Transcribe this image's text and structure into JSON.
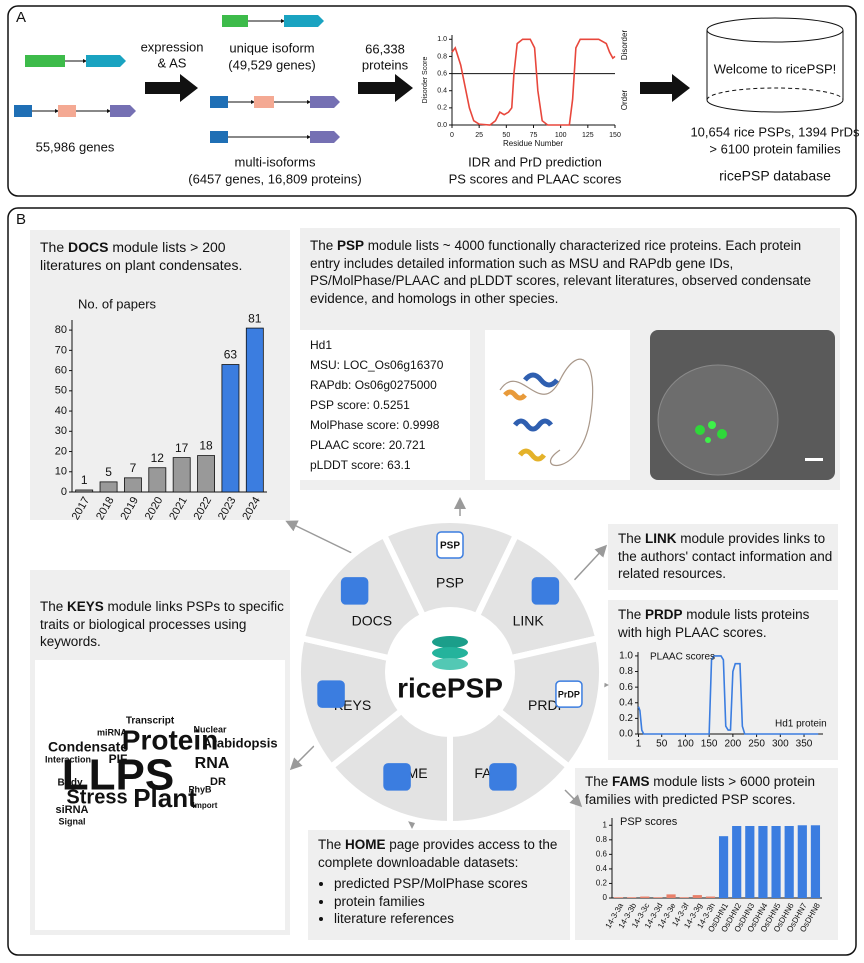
{
  "panel_a": {
    "label": "A",
    "genes": "55,986 genes",
    "step1": [
      "expression",
      "& AS"
    ],
    "unique": {
      "title": "unique isoform",
      "count": "(49,529 genes)"
    },
    "multi": {
      "title": "multi-isoforms",
      "count": "(6457 genes, 16,809 proteins)"
    },
    "step2": [
      "66,338",
      "proteins"
    ],
    "disorder_chart": {
      "type": "line",
      "y_label": "Disorder Score",
      "x_label": "Residue Number",
      "upper_label": "Disorder",
      "lower_label": "Order",
      "threshold": 0.6,
      "color": "#e8473c",
      "xlim": [
        0,
        150
      ],
      "ylim": [
        0,
        1.05
      ],
      "xticks": [
        0,
        25,
        50,
        75,
        100,
        125,
        150
      ],
      "yticks": [
        {
          "value": 0,
          "label": "0.0"
        },
        {
          "value": 0.2,
          "label": "0.2"
        },
        {
          "value": 0.4,
          "label": "0.4"
        },
        {
          "value": 0.6,
          "label": "0.6"
        },
        {
          "value": 0.8,
          "label": "0.8"
        },
        {
          "value": 1,
          "label": "1.0"
        }
      ],
      "x": [
        0,
        3,
        8,
        12,
        16,
        20,
        25,
        35,
        40,
        44,
        48,
        52,
        55,
        57,
        60,
        65,
        72,
        76,
        79,
        83,
        88,
        100,
        108,
        111,
        114,
        118,
        125,
        135,
        142,
        145,
        148,
        150
      ],
      "values": [
        0.85,
        0.9,
        0.7,
        0.45,
        0.2,
        0.05,
        0.01,
        0.0,
        0.05,
        0.15,
        0.12,
        0.15,
        0.2,
        0.6,
        0.95,
        1.0,
        1.0,
        0.9,
        0.4,
        0.05,
        0.0,
        0.0,
        0.0,
        0.3,
        0.9,
        1.0,
        1.0,
        1.0,
        0.95,
        0.85,
        0.78,
        0.8
      ]
    },
    "caption": [
      "IDR and PrD prediction",
      "PS scores and PLAAC scores"
    ],
    "database": {
      "screen": "Welcome to ricePSP!",
      "stats": [
        "10,654 rice PSPs, 1394 PrDs",
        "> 6100 protein families"
      ],
      "name": "ricePSP database"
    }
  },
  "panel_b": {
    "label": "B",
    "hub": {
      "center": "ricePSP",
      "modules": [
        "PSP",
        "LINK",
        "PRDP",
        "FAMS",
        "HOME",
        "KEYS",
        "DOCS"
      ],
      "icon_labels": [
        "PSP",
        "PrDP"
      ]
    },
    "docs": {
      "text": {
        "pre": "The ",
        "bold": "DOCS",
        "post": " module lists > 200 literatures on plant condensates."
      },
      "chart": {
        "type": "bar",
        "y_label": "No. of papers",
        "categories": [
          "2017",
          "2018",
          "2019",
          "2020",
          "2021",
          "2022",
          "2023",
          "2024"
        ],
        "values": [
          1,
          5,
          7,
          12,
          17,
          18,
          63,
          81
        ],
        "colors": [
          "#999999",
          "#999999",
          "#999999",
          "#999999",
          "#999999",
          "#999999",
          "#3b7de0",
          "#3b7de0"
        ],
        "ylim": [
          0,
          85
        ],
        "yticks": [
          0,
          10,
          20,
          30,
          40,
          50,
          60,
          70,
          80
        ]
      }
    },
    "psp": {
      "text": {
        "pre": "The ",
        "bold": "PSP",
        "post": " module lists ~ 4000 functionally characterized rice proteins. Each protein entry includes detailed information such as MSU and RAPdb gene IDs, PS/MolPhase/PLAAC and pLDDT scores, relevant literatures, observed condensate evidence, and homologs in other species."
      },
      "entry": [
        "Hd1",
        "MSU: LOC_Os06g16370",
        "RAPdb: Os06g0275000",
        "PSP score: 0.5251",
        "MolPhase score: 0.9998",
        "PLAAC score: 20.721",
        "pLDDT score: 63.1"
      ]
    },
    "link": {
      "text": {
        "pre": "The ",
        "bold": "LINK",
        "post": " module provides links to the authors' contact information and related resources."
      }
    },
    "prdp": {
      "text": {
        "pre": "The ",
        "bold": "PRDP",
        "post": " module lists proteins with high PLAAC scores."
      },
      "chart": {
        "type": "line",
        "y_label": "PLAAC scores",
        "annotation": "Hd1 protein",
        "color": "#3b7de0",
        "xlim": [
          0,
          390
        ],
        "ylim": [
          0,
          1.05
        ],
        "xticks": [
          1,
          50,
          100,
          150,
          200,
          250,
          300,
          350
        ],
        "yticks": [
          {
            "value": 0,
            "label": "0.0"
          },
          {
            "value": 0.2,
            "label": "0.2"
          },
          {
            "value": 0.4,
            "label": "0.4"
          },
          {
            "value": 0.6,
            "label": "0.6"
          },
          {
            "value": 0.8,
            "label": "0.8"
          },
          {
            "value": 1,
            "label": "1.0"
          }
        ],
        "x": [
          1,
          4,
          8,
          12,
          150,
          155,
          160,
          175,
          180,
          185,
          190,
          195,
          200,
          205,
          215,
          220,
          225,
          380
        ],
        "values": [
          0.35,
          0.3,
          0.05,
          0,
          0,
          0.95,
          1.0,
          1.0,
          0.95,
          0.1,
          0.05,
          0.05,
          0.8,
          0.9,
          0.9,
          0.1,
          0,
          0
        ]
      }
    },
    "fams": {
      "text": {
        "pre": "The ",
        "bold": "FAMS",
        "post": " module lists > 6000 protein families with predicted PSP scores."
      },
      "chart": {
        "type": "bar",
        "y_label": "PSP scores",
        "categories": [
          "14-3-3a",
          "14-3-3b",
          "14-3-3c",
          "14-3-3d",
          "14-3-3e",
          "14-3-3f",
          "14-3-3g",
          "14-3-3h",
          "OsDHN1",
          "OsDHN2",
          "OsDHN3",
          "OsDHN4",
          "OsDHN5",
          "OsDHN6",
          "OsDHN7",
          "OsDHN8"
        ],
        "values": [
          0.01,
          0.01,
          0.02,
          0.01,
          0.05,
          0.01,
          0.04,
          0.02,
          0.85,
          0.99,
          0.99,
          0.99,
          0.99,
          0.99,
          1.0,
          1.0
        ],
        "colors": [
          "#e8806a",
          "#e8806a",
          "#e8806a",
          "#e8806a",
          "#e8806a",
          "#e8806a",
          "#e8806a",
          "#e8806a",
          "#3b7de0",
          "#3b7de0",
          "#3b7de0",
          "#3b7de0",
          "#3b7de0",
          "#3b7de0",
          "#3b7de0",
          "#3b7de0"
        ],
        "ylim": [
          0,
          1.1
        ],
        "yticks": [
          0,
          0.2,
          0.4,
          0.6,
          0.8,
          1
        ]
      }
    },
    "keys": {
      "text": {
        "pre": "The ",
        "bold": "KEYS",
        "post": " module links PSPs to specific traits or biological processes using keywords."
      },
      "words": [
        "LLPS",
        "Protein",
        "Stress",
        "Plant",
        "RNA",
        "Arabidopsis",
        "Condensate",
        "Transcript",
        "PIF",
        "Interaction",
        "siRNA",
        "Body",
        "miRNA",
        "PhyB",
        "DR",
        "Nuclear",
        "Signal",
        "Import"
      ]
    },
    "home": {
      "text": {
        "pre": "The ",
        "bold": "HOME",
        "post": " page provides access to the complete downloadable datasets:"
      },
      "items": [
        "predicted PSP/MolPhase scores",
        "protein families",
        "literature references"
      ]
    }
  }
}
